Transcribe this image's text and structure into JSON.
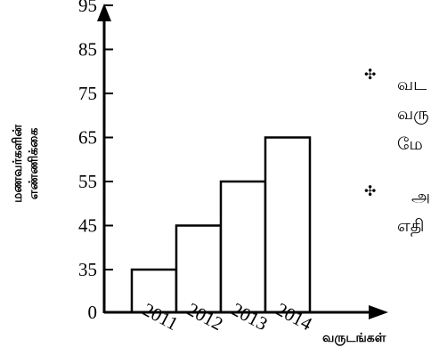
{
  "chart_data": {
    "type": "bar",
    "categories": [
      "2011",
      "2012",
      "2013",
      "2014"
    ],
    "values": [
      35,
      45,
      55,
      65
    ],
    "yticks": [
      0,
      35,
      45,
      55,
      65,
      75,
      85,
      95
    ],
    "ylim": [
      0,
      100
    ],
    "title": "",
    "xlabel": "வருடங்கள்",
    "ylabel_line1": "மணவர்களின்",
    "ylabel_line2": "எண்ணிக்கை",
    "grid": false,
    "bar_color": "#ffffff",
    "edge_color": "#000000"
  },
  "side": {
    "bullet_glyph": "✣",
    "bullet1_line1": "வட",
    "bullet1_line2": "வரு",
    "bullet1_line3": "மே",
    "bullet2_line1": "அ",
    "bullet2_line2": "எதி"
  }
}
